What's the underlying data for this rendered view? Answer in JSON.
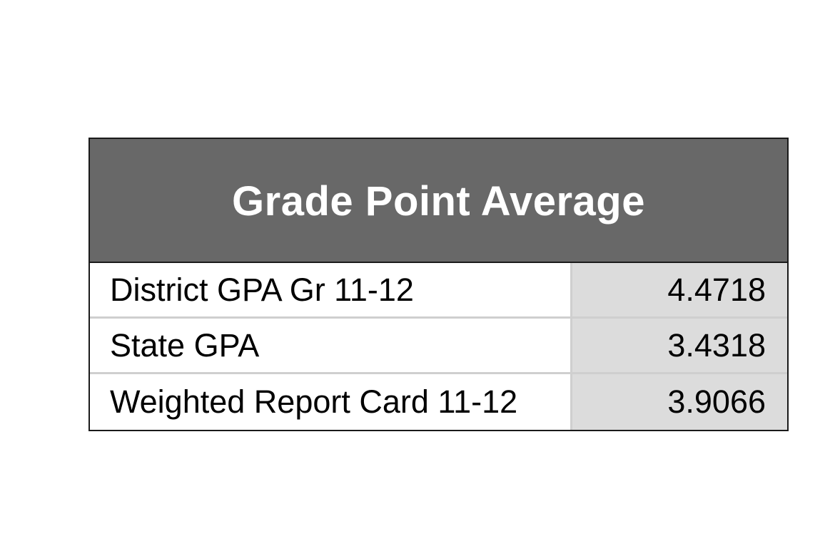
{
  "table": {
    "title": "Grade Point Average",
    "rows": [
      {
        "label": "District GPA Gr 11-12",
        "value": "4.4718"
      },
      {
        "label": "State GPA",
        "value": "3.4318"
      },
      {
        "label": "Weighted Report Card 11-12",
        "value": "3.9066"
      }
    ]
  },
  "colors": {
    "header_background": "#686868",
    "header_text": "#ffffff",
    "value_cell_background": "#dcdcdc",
    "border": "#1a1a1a"
  }
}
